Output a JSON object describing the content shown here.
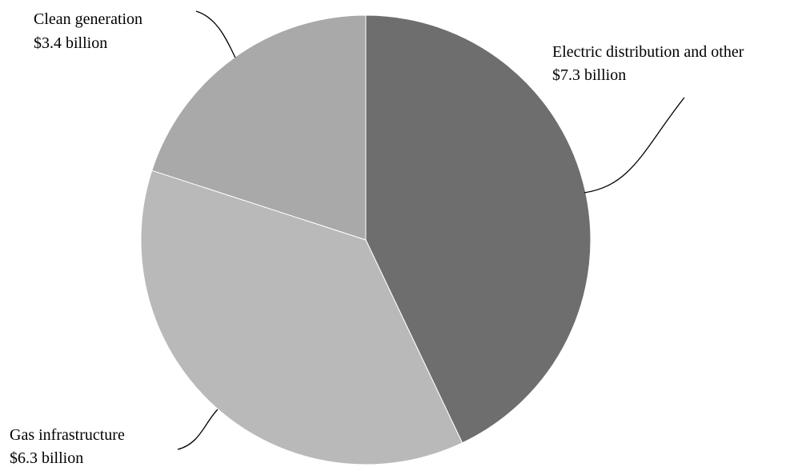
{
  "chart_data": {
    "type": "pie",
    "title": "",
    "unit": "$ billion",
    "slices": [
      {
        "label": "Electric distribution and other",
        "value": 7.3,
        "value_label": "$7.3 billion",
        "color": "#6e6e6e"
      },
      {
        "label": "Gas infrastructure",
        "value": 6.3,
        "value_label": "$6.3 billion",
        "color": "#b9b9b9"
      },
      {
        "label": "Clean generation",
        "value": 3.4,
        "value_label": "$3.4 billion",
        "color": "#a9a9a9"
      }
    ],
    "start": "12 o'clock",
    "direction": "clockwise",
    "legend": "none (direct labels with leader lines)"
  }
}
